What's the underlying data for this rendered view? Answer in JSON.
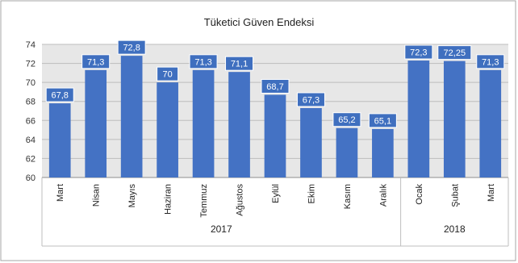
{
  "chart_data": {
    "type": "bar",
    "title": "Tüketici Güven Endeksi",
    "categories": [
      "Mart",
      "Nisan",
      "Mayıs",
      "Haziran",
      "Temmuz",
      "Ağustos",
      "Eylül",
      "Ekim",
      "Kasım",
      "Aralık",
      "Ocak",
      "Şubat",
      "Mart"
    ],
    "values": [
      67.8,
      71.3,
      72.8,
      70,
      71.3,
      71.1,
      68.7,
      67.3,
      65.2,
      65.1,
      72.3,
      72.25,
      71.3
    ],
    "data_labels": [
      "67,8",
      "71,3",
      "72,8",
      "70",
      "71,3",
      "71,1",
      "68,7",
      "67,3",
      "65,2",
      "65,1",
      "72,3",
      "72,25",
      "71,3"
    ],
    "year_groups": [
      {
        "label": "2017",
        "start": 0,
        "end": 9
      },
      {
        "label": "2018",
        "start": 10,
        "end": 12
      }
    ],
    "ylim": [
      60,
      74
    ],
    "yticks": [
      "60",
      "62",
      "64",
      "66",
      "68",
      "70",
      "72",
      "74"
    ],
    "xlabel": "",
    "ylabel": "",
    "grid": true,
    "colors": {
      "bar": "#4472c4",
      "plot_background": "#e7e7e7",
      "gridline": "#bdbdbd",
      "label_box": "#3f6fbf",
      "label_text": "#ffffff",
      "axis": "#8c8c8c"
    }
  }
}
